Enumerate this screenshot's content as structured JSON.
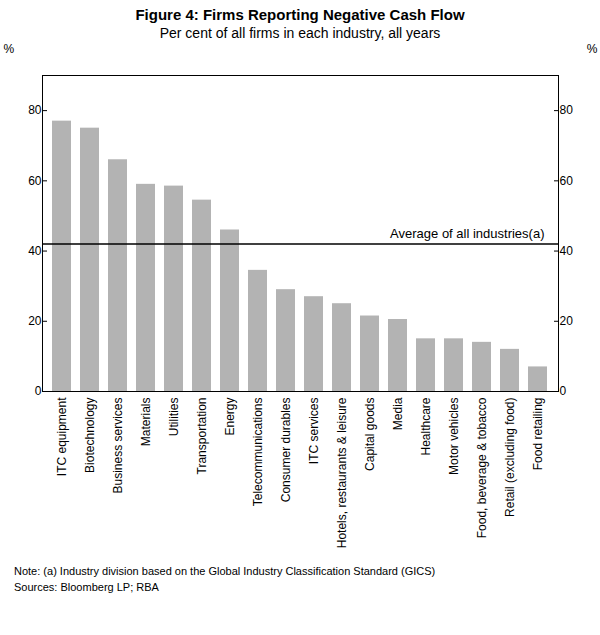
{
  "chart_data": {
    "type": "bar",
    "title": "Figure 4: Firms Reporting Negative Cash Flow",
    "subtitle": "Per cent of all firms in each industry, all years",
    "y_label": "%",
    "categories": [
      "ITC equipment",
      "Biotechnology",
      "Business services",
      "Materials",
      "Utilities",
      "Transportation",
      "Energy",
      "Telecommunications",
      "Consumer durables",
      "ITC services",
      "Hotels, restaurants & leisure",
      "Capital goods",
      "Media",
      "Healthcare",
      "Motor vehicles",
      "Food, beverage & tobacco",
      "Retail (excluding food)",
      "Food retailing"
    ],
    "values": [
      77,
      75,
      66,
      59,
      58.5,
      54.5,
      46,
      34.5,
      29,
      27,
      25,
      21.5,
      20.5,
      15,
      15,
      14,
      12,
      7
    ],
    "color": "#b3b3b3",
    "ylim": [
      0,
      90
    ],
    "yticks": [
      0,
      20,
      40,
      60,
      80
    ],
    "grid": false,
    "reference_line": {
      "label": "Average of all industries(a)",
      "value": 42
    },
    "note": "Note:        (a) Industry division based on the Global Industry Classification Standard (GICS)",
    "sources": "Sources: Bloomberg LP; RBA"
  }
}
